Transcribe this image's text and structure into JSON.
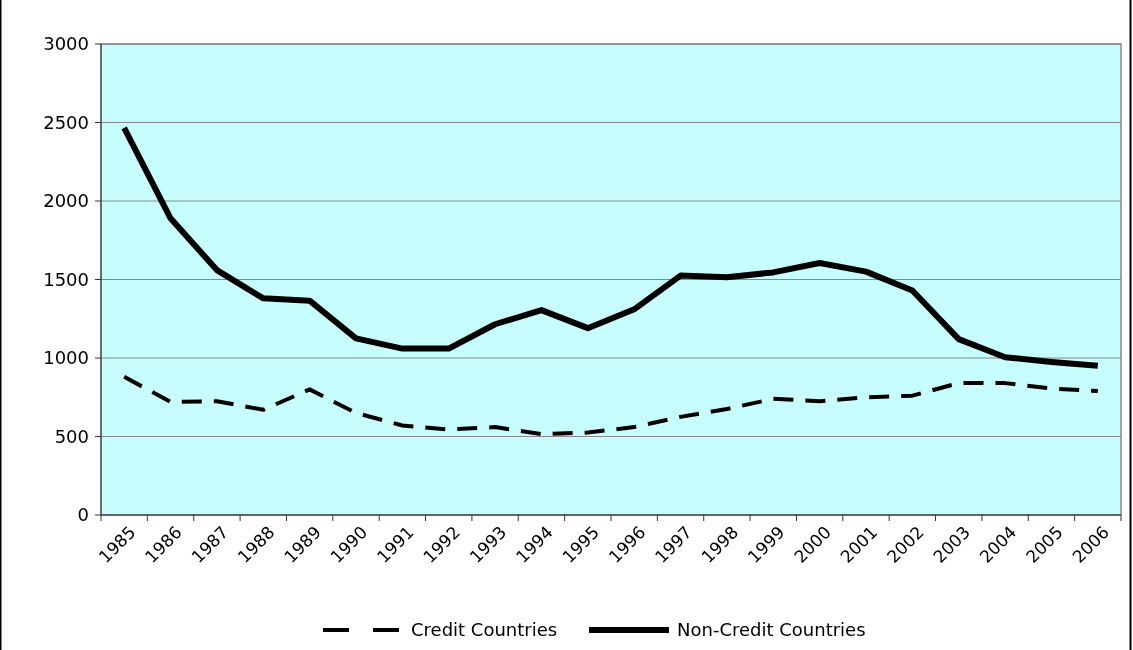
{
  "chart_data": {
    "type": "line",
    "categories": [
      "1985",
      "1986",
      "1987",
      "1988",
      "1989",
      "1990",
      "1991",
      "1992",
      "1993",
      "1994",
      "1995",
      "1996",
      "1997",
      "1998",
      "1999",
      "2000",
      "2001",
      "2002",
      "2003",
      "2004",
      "2005",
      "2006"
    ],
    "series": [
      {
        "name": "Credit Countries",
        "color": "#000000",
        "line_style": "dashed",
        "values": [
          880,
          720,
          725,
          670,
          800,
          650,
          570,
          545,
          560,
          515,
          525,
          560,
          625,
          675,
          740,
          725,
          750,
          760,
          840,
          840,
          805,
          790
        ]
      },
      {
        "name": "Non-Credit Countries",
        "color": "#000000",
        "line_style": "solid",
        "values": [
          2465,
          1890,
          1560,
          1380,
          1365,
          1125,
          1060,
          1060,
          1215,
          1305,
          1190,
          1310,
          1525,
          1515,
          1545,
          1605,
          1550,
          1430,
          1120,
          1005,
          975,
          950
        ]
      }
    ],
    "ylim": [
      0,
      3000
    ],
    "yticks": [
      0,
      500,
      1000,
      1500,
      2000,
      2500,
      3000
    ],
    "grid": "y",
    "legend": "bottom",
    "marker": "none"
  }
}
